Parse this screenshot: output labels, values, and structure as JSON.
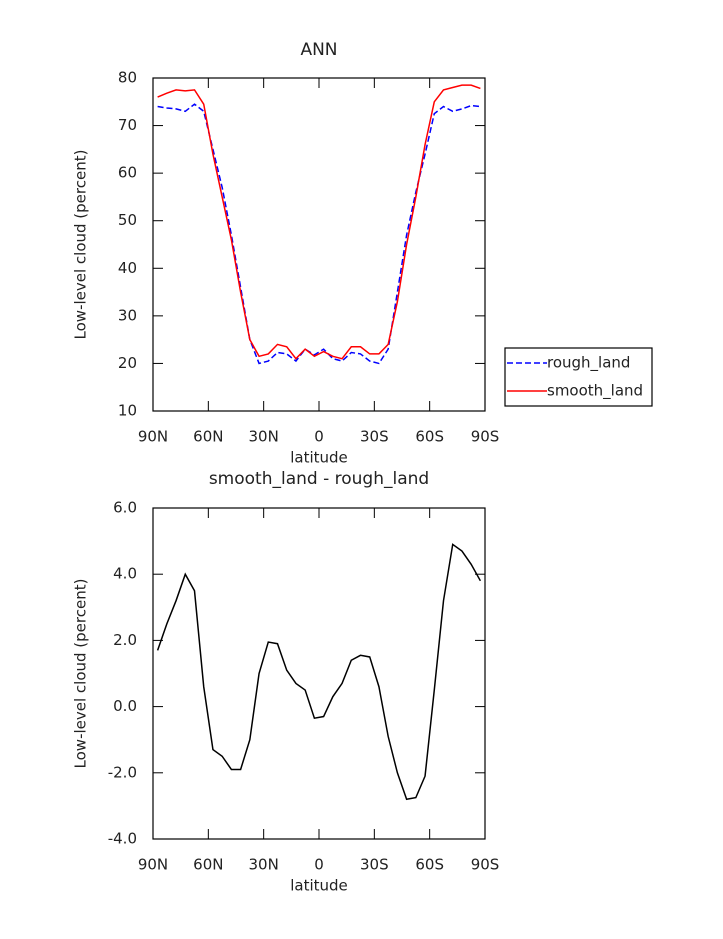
{
  "chart_data": [
    {
      "type": "line",
      "title": "ANN",
      "xlabel": "latitude",
      "ylabel": "Low-level cloud (percent)",
      "x": [
        87.5,
        82.5,
        77.5,
        72.5,
        67.5,
        62.5,
        57.5,
        52.5,
        47.5,
        42.5,
        37.5,
        32.5,
        27.5,
        22.5,
        17.5,
        12.5,
        7.5,
        2.5,
        -2.5,
        -7.5,
        -12.5,
        -17.5,
        -22.5,
        -27.5,
        -32.5,
        -37.5,
        -42.5,
        -47.5,
        -52.5,
        -57.5,
        -62.5,
        -67.5,
        -72.5,
        -77.5,
        -82.5,
        -87.5
      ],
      "series": [
        {
          "name": "rough_land",
          "color": "#0000ff",
          "linestyle": "dashed",
          "values": [
            74,
            73.7,
            73.5,
            73,
            74.5,
            73,
            65,
            57,
            47,
            36,
            25,
            20,
            20.5,
            22.3,
            22,
            20.5,
            23,
            21.8,
            23,
            21,
            20.5,
            22.3,
            22,
            20.5,
            20,
            23,
            35,
            47,
            56,
            64,
            72.5,
            74,
            73,
            73.5,
            74.2,
            74
          ]
        },
        {
          "name": "smooth_land",
          "color": "#ff0000",
          "linestyle": "solid",
          "values": [
            76,
            76.8,
            77.5,
            77.3,
            77.5,
            74.5,
            64,
            55,
            46,
            35,
            25,
            21.5,
            22,
            24,
            23.5,
            21,
            23,
            21.5,
            22.5,
            21.5,
            21,
            23.5,
            23.5,
            22,
            22,
            24,
            33,
            45,
            55,
            66,
            75,
            77.5,
            78,
            78.5,
            78.5,
            77.8
          ]
        }
      ],
      "xlim": [
        90,
        -90
      ],
      "xticks": [
        {
          "value": 90,
          "label": "90N"
        },
        {
          "value": 60,
          "label": "60N"
        },
        {
          "value": 30,
          "label": "30N"
        },
        0,
        {
          "value": -30,
          "label": "30S"
        },
        {
          "value": -60,
          "label": "60S"
        },
        {
          "value": -90,
          "label": "90S"
        }
      ],
      "ylim": [
        10,
        80
      ],
      "yticks": [
        10,
        20,
        30,
        40,
        50,
        60,
        70,
        80
      ],
      "legend": "right"
    },
    {
      "type": "line",
      "title": "smooth_land - rough_land",
      "xlabel": "latitude",
      "ylabel": "Low-level cloud (percent)",
      "x": [
        87.5,
        82.5,
        77.5,
        72.5,
        67.5,
        62.5,
        57.5,
        52.5,
        47.5,
        42.5,
        37.5,
        32.5,
        27.5,
        22.5,
        17.5,
        12.5,
        7.5,
        2.5,
        -2.5,
        -7.5,
        -12.5,
        -17.5,
        -22.5,
        -27.5,
        -32.5,
        -37.5,
        -42.5,
        -47.5,
        -52.5,
        -57.5,
        -62.5,
        -67.5,
        -72.5,
        -77.5,
        -82.5,
        -87.5
      ],
      "color": "#000000",
      "values": [
        1.7,
        2.5,
        3.2,
        4.0,
        3.5,
        0.6,
        -1.3,
        -1.5,
        -1.9,
        -1.9,
        -1.0,
        1.0,
        1.95,
        1.9,
        1.1,
        0.7,
        0.5,
        -0.35,
        -0.3,
        0.3,
        0.7,
        1.4,
        1.55,
        1.5,
        0.6,
        -0.9,
        -2.0,
        -2.8,
        -2.75,
        -2.1,
        0.5,
        3.2,
        4.9,
        4.7,
        4.3,
        3.8
      ],
      "xlim": [
        90,
        -90
      ],
      "xticks": [
        {
          "value": 90,
          "label": "90N"
        },
        {
          "value": 60,
          "label": "60N"
        },
        {
          "value": 30,
          "label": "30N"
        },
        0,
        {
          "value": -30,
          "label": "30S"
        },
        {
          "value": -60,
          "label": "60S"
        },
        {
          "value": -90,
          "label": "90S"
        }
      ],
      "ylim": [
        -4,
        6
      ],
      "yticks": [
        {
          "value": -4,
          "label": "-4.0"
        },
        {
          "value": -2,
          "label": "-2.0"
        },
        {
          "value": 0,
          "label": "0.0"
        },
        {
          "value": 2,
          "label": "2.0"
        },
        {
          "value": 4,
          "label": "4.0"
        },
        {
          "value": 6,
          "label": "6.0"
        }
      ]
    }
  ]
}
